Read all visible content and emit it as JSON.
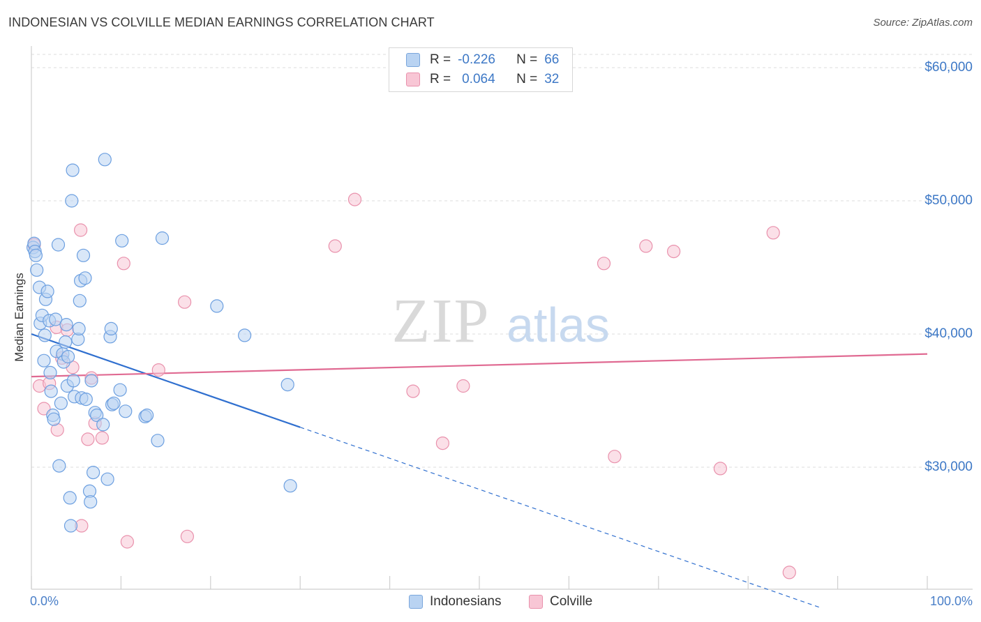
{
  "title": "INDONESIAN VS COLVILLE MEDIAN EARNINGS CORRELATION CHART",
  "source": "Source: ZipAtlas.com",
  "watermark": {
    "zip": "ZIP",
    "atlas": "atlas"
  },
  "legend_top": {
    "rows": [
      {
        "r_label": "R =",
        "r_value": "-0.226",
        "n_label": "N =",
        "n_value": "66"
      },
      {
        "r_label": "R =",
        "r_value": "0.064",
        "n_label": "N =",
        "n_value": "32"
      }
    ]
  },
  "colors": {
    "blue": "#6c9fe0",
    "blue_fill": "#b9d3f2",
    "pink": "#e991ac",
    "pink_fill": "#f8c6d5",
    "blue_line": "#2f6fcf",
    "pink_line": "#e06a92",
    "axis_text": "#3d78c6"
  },
  "chart_data": {
    "type": "scatter",
    "title": "INDONESIAN VS COLVILLE MEDIAN EARNINGS CORRELATION CHART",
    "xlabel": "",
    "ylabel": "Median Earnings",
    "xlim": [
      0,
      100
    ],
    "ylim": [
      20000,
      61500
    ],
    "x_tick_labels": [
      "0.0%",
      "100.0%"
    ],
    "y_ticks": [
      {
        "value": 30000,
        "label": "$30,000"
      },
      {
        "value": 40000,
        "label": "$40,000"
      },
      {
        "value": 50000,
        "label": "$50,000"
      },
      {
        "value": 60000,
        "label": "$60,000"
      }
    ],
    "series": [
      {
        "name": "Indonesians",
        "color": "#6c9fe0",
        "r": -0.226,
        "n": 66,
        "trend": {
          "x0": 0,
          "y0": 40000,
          "x_solid_end": 30,
          "slope_per_pct": -233.3,
          "x_dashed_end": 88
        },
        "points": [
          [
            0.2,
            46500
          ],
          [
            0.3,
            46800
          ],
          [
            0.4,
            46200
          ],
          [
            0.5,
            45900
          ],
          [
            0.6,
            44800
          ],
          [
            0.9,
            43500
          ],
          [
            1.0,
            40800
          ],
          [
            1.2,
            41400
          ],
          [
            1.4,
            38000
          ],
          [
            1.5,
            39900
          ],
          [
            1.6,
            42600
          ],
          [
            1.8,
            43200
          ],
          [
            2.0,
            41000
          ],
          [
            2.1,
            37100
          ],
          [
            2.2,
            35700
          ],
          [
            2.4,
            33900
          ],
          [
            2.5,
            33600
          ],
          [
            2.7,
            41100
          ],
          [
            2.8,
            38700
          ],
          [
            3.0,
            46700
          ],
          [
            3.1,
            30100
          ],
          [
            3.3,
            34800
          ],
          [
            3.5,
            38500
          ],
          [
            3.6,
            37900
          ],
          [
            3.8,
            39400
          ],
          [
            3.9,
            40700
          ],
          [
            4.0,
            36100
          ],
          [
            4.1,
            38300
          ],
          [
            4.3,
            27700
          ],
          [
            4.4,
            25600
          ],
          [
            4.5,
            50000
          ],
          [
            4.6,
            52300
          ],
          [
            4.7,
            36500
          ],
          [
            4.8,
            35300
          ],
          [
            5.2,
            39600
          ],
          [
            5.3,
            40400
          ],
          [
            5.4,
            42500
          ],
          [
            5.5,
            44000
          ],
          [
            5.6,
            35200
          ],
          [
            5.8,
            45900
          ],
          [
            6.0,
            44200
          ],
          [
            6.1,
            35100
          ],
          [
            6.5,
            28200
          ],
          [
            6.6,
            27400
          ],
          [
            6.7,
            36500
          ],
          [
            6.9,
            29600
          ],
          [
            7.1,
            34100
          ],
          [
            7.3,
            33900
          ],
          [
            8.0,
            33200
          ],
          [
            8.2,
            53100
          ],
          [
            8.5,
            29100
          ],
          [
            8.8,
            39800
          ],
          [
            8.9,
            40400
          ],
          [
            9.0,
            34700
          ],
          [
            9.2,
            34800
          ],
          [
            9.9,
            35800
          ],
          [
            10.1,
            47000
          ],
          [
            10.5,
            34200
          ],
          [
            12.7,
            33800
          ],
          [
            12.9,
            33900
          ],
          [
            14.1,
            32000
          ],
          [
            14.6,
            47200
          ],
          [
            20.7,
            42100
          ],
          [
            23.8,
            39900
          ],
          [
            28.6,
            36200
          ],
          [
            28.9,
            28600
          ]
        ]
      },
      {
        "name": "Colville",
        "color": "#e991ac",
        "r": 0.064,
        "n": 32,
        "trend": {
          "x0": 0,
          "y0": 36800,
          "x1": 100,
          "y1": 38500
        },
        "points": [
          [
            0.3,
            46700
          ],
          [
            0.9,
            36100
          ],
          [
            1.4,
            34400
          ],
          [
            2.0,
            36300
          ],
          [
            2.8,
            40500
          ],
          [
            2.9,
            32800
          ],
          [
            3.4,
            38200
          ],
          [
            4.0,
            40300
          ],
          [
            4.6,
            37500
          ],
          [
            5.5,
            47800
          ],
          [
            5.6,
            25600
          ],
          [
            6.3,
            32100
          ],
          [
            6.7,
            36700
          ],
          [
            7.1,
            33300
          ],
          [
            7.9,
            32200
          ],
          [
            10.3,
            45300
          ],
          [
            10.7,
            24400
          ],
          [
            14.2,
            37300
          ],
          [
            17.1,
            42400
          ],
          [
            17.4,
            24800
          ],
          [
            33.9,
            46600
          ],
          [
            36.1,
            50100
          ],
          [
            42.6,
            35700
          ],
          [
            45.9,
            31800
          ],
          [
            48.2,
            36100
          ],
          [
            63.9,
            45300
          ],
          [
            65.1,
            30800
          ],
          [
            68.6,
            46600
          ],
          [
            71.7,
            46200
          ],
          [
            76.9,
            29900
          ],
          [
            82.8,
            47600
          ],
          [
            84.6,
            22100
          ]
        ]
      }
    ]
  },
  "legend_bottom": [
    "Indonesians",
    "Colville"
  ]
}
